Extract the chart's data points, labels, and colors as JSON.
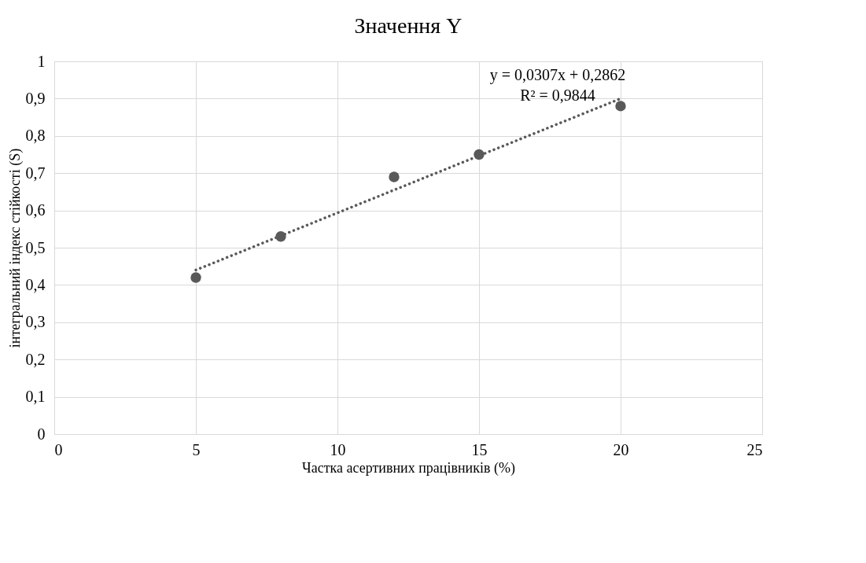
{
  "chart_data": {
    "type": "scatter",
    "title": "Значення Y",
    "xlabel": "Частка асертивних працівників (%)",
    "ylabel": "інтегральний індекс стійкості (S)",
    "series": [
      {
        "color": "#595959",
        "marker": "circle",
        "x": [
          5,
          8,
          12,
          15,
          20
        ],
        "values": [
          0.42,
          0.53,
          0.69,
          0.75,
          0.88
        ]
      },
      {
        "type": "line",
        "color": "#595959",
        "line_style": "dotted",
        "marker": "none",
        "x": [
          5,
          20
        ],
        "values": [
          0.44,
          0.9
        ]
      }
    ],
    "annotations": [
      "y = 0,0307x + 0,2862\nR² = 0,9844"
    ],
    "xlim": [
      0,
      25
    ],
    "xticks": [
      0,
      5,
      10,
      15,
      20,
      25
    ],
    "ylim": [
      0,
      1
    ],
    "yticks": [
      0,
      {
        "value": 0.1,
        "label": "0,1"
      },
      {
        "value": 0.2,
        "label": "0,2"
      },
      {
        "value": 0.3,
        "label": "0,3"
      },
      {
        "value": 0.4,
        "label": "0,4"
      },
      {
        "value": 0.5,
        "label": "0,5"
      },
      {
        "value": 0.6,
        "label": "0,6"
      },
      {
        "value": 0.7,
        "label": "0,7"
      },
      {
        "value": 0.8,
        "label": "0,8"
      },
      {
        "value": 0.9,
        "label": "0,9"
      },
      1
    ],
    "grid": true
  }
}
